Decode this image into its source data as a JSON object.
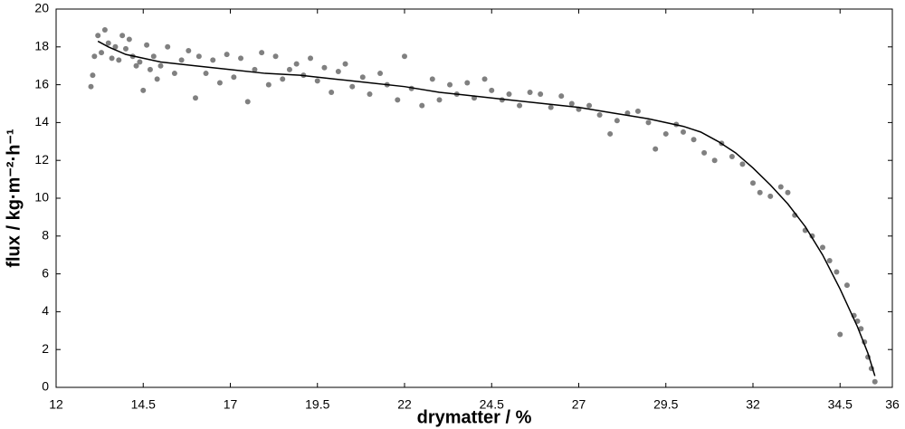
{
  "chart_data": {
    "type": "scatter",
    "x_label": "drymatter / %",
    "y_label": "flux / kg·m⁻²·h⁻¹",
    "xlim": [
      12,
      36
    ],
    "xticks": [
      12,
      14.5,
      17,
      19.5,
      22,
      24.5,
      27,
      29.5,
      32,
      34.5,
      36
    ],
    "ylim": [
      0,
      20
    ],
    "yticks": [
      0,
      2,
      4,
      6,
      8,
      10,
      12,
      14,
      16,
      18,
      20
    ],
    "grid": false,
    "series": [
      {
        "type": "scatter",
        "color": "#808080",
        "x": [
          13.0,
          13.05,
          13.1,
          13.2,
          13.3,
          13.4,
          13.5,
          13.6,
          13.7,
          13.8,
          13.9,
          14.0,
          14.1,
          14.2,
          14.3,
          14.4,
          14.5,
          14.6,
          14.7,
          14.8,
          14.9,
          15.0,
          15.2,
          15.4,
          15.6,
          15.8,
          16.0,
          16.1,
          16.3,
          16.5,
          16.7,
          16.9,
          17.1,
          17.3,
          17.5,
          17.7,
          17.9,
          18.1,
          18.3,
          18.5,
          18.7,
          18.9,
          19.1,
          19.3,
          19.5,
          19.7,
          19.9,
          20.1,
          20.3,
          20.5,
          20.8,
          21.0,
          21.3,
          21.5,
          21.8,
          22.0,
          22.2,
          22.5,
          22.8,
          23.0,
          23.3,
          23.5,
          23.8,
          24.0,
          24.3,
          24.5,
          24.8,
          25.0,
          25.3,
          25.6,
          25.9,
          26.2,
          26.5,
          26.8,
          27.0,
          27.3,
          27.6,
          27.9,
          28.1,
          28.4,
          28.7,
          29.0,
          29.2,
          29.5,
          29.8,
          30.0,
          30.3,
          30.6,
          30.9,
          31.1,
          31.4,
          31.7,
          32.0,
          32.2,
          32.5,
          32.8,
          33.0,
          33.2,
          33.5,
          33.7,
          34.0,
          34.2,
          34.4,
          34.5,
          34.7,
          34.9,
          35.0,
          35.1,
          35.2,
          35.3,
          35.4,
          35.5
        ],
        "y": [
          15.9,
          16.5,
          17.5,
          18.6,
          17.7,
          18.9,
          18.2,
          17.4,
          18.0,
          17.3,
          18.6,
          17.9,
          18.4,
          17.5,
          17.0,
          17.2,
          15.7,
          18.1,
          16.8,
          17.5,
          16.3,
          17.0,
          18.0,
          16.6,
          17.3,
          17.8,
          15.3,
          17.5,
          16.6,
          17.3,
          16.1,
          17.6,
          16.4,
          17.4,
          15.1,
          16.8,
          17.7,
          16.0,
          17.5,
          16.3,
          16.8,
          17.1,
          16.5,
          17.4,
          16.2,
          16.9,
          15.6,
          16.7,
          17.1,
          15.9,
          16.4,
          15.5,
          16.6,
          16.0,
          15.2,
          17.5,
          15.8,
          14.9,
          16.3,
          15.2,
          16.0,
          15.5,
          16.1,
          15.3,
          16.3,
          15.7,
          15.2,
          15.5,
          14.9,
          15.6,
          15.5,
          14.8,
          15.4,
          15.0,
          14.7,
          14.9,
          14.4,
          13.4,
          14.1,
          14.5,
          14.6,
          14.0,
          12.6,
          13.4,
          13.9,
          13.5,
          13.1,
          12.4,
          12.0,
          12.9,
          12.2,
          11.8,
          10.8,
          10.3,
          10.1,
          10.6,
          10.3,
          9.1,
          8.3,
          8.0,
          7.4,
          6.7,
          6.1,
          2.8,
          5.4,
          3.8,
          3.5,
          3.1,
          2.4,
          1.6,
          1.0,
          0.3
        ]
      },
      {
        "type": "line",
        "color": "#000000",
        "x": [
          13.2,
          13.5,
          14,
          15,
          16,
          17,
          18,
          19,
          20,
          21,
          22,
          23,
          24,
          25,
          26,
          27,
          28,
          29,
          30,
          30.5,
          31,
          31.5,
          32,
          32.5,
          33,
          33.5,
          34,
          34.5,
          35,
          35.3,
          35.5
        ],
        "y": [
          18.3,
          18.0,
          17.6,
          17.2,
          17.0,
          16.8,
          16.6,
          16.5,
          16.3,
          16.1,
          15.9,
          15.6,
          15.4,
          15.2,
          15.0,
          14.8,
          14.5,
          14.2,
          13.8,
          13.5,
          13.0,
          12.4,
          11.6,
          10.7,
          9.7,
          8.5,
          7.0,
          5.2,
          3.2,
          1.8,
          0.6
        ]
      }
    ]
  }
}
